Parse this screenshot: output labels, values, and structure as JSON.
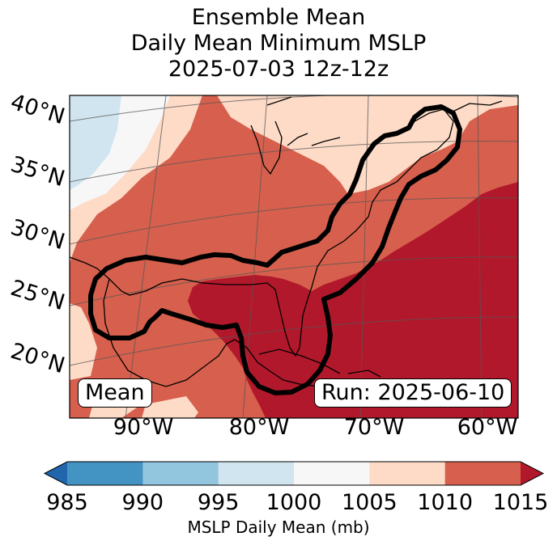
{
  "title": {
    "line1": "Ensemble Mean",
    "line2": "Daily Mean Minimum MSLP",
    "line3": "2025-07-03 12z-12z"
  },
  "map": {
    "mean_label": "Mean",
    "run_label": "Run: 2025-06-10",
    "lat_labels": [
      "40°N",
      "35°N",
      "30°N",
      "25°N",
      "20°N"
    ],
    "lon_labels": [
      "90°W",
      "80°W",
      "70°W",
      "60°W"
    ],
    "colors": {
      "c985": "#2166ac",
      "c990": "#4393c3",
      "c995": "#92c5de",
      "c1000": "#d1e5f0",
      "c1005": "#f7f7f7",
      "c1010": "#fddbc7",
      "c1015": "#d6604d",
      "cover": "#b2182b"
    }
  },
  "colorbar": {
    "label": "MSLP Daily Mean (mb)",
    "ticks": [
      "985",
      "990",
      "995",
      "1000",
      "1005",
      "1010",
      "1015"
    ],
    "colors": [
      "#2166ac",
      "#4393c3",
      "#92c5de",
      "#d1e5f0",
      "#f7f7f7",
      "#fddbc7",
      "#d6604d",
      "#b2182b"
    ]
  }
}
